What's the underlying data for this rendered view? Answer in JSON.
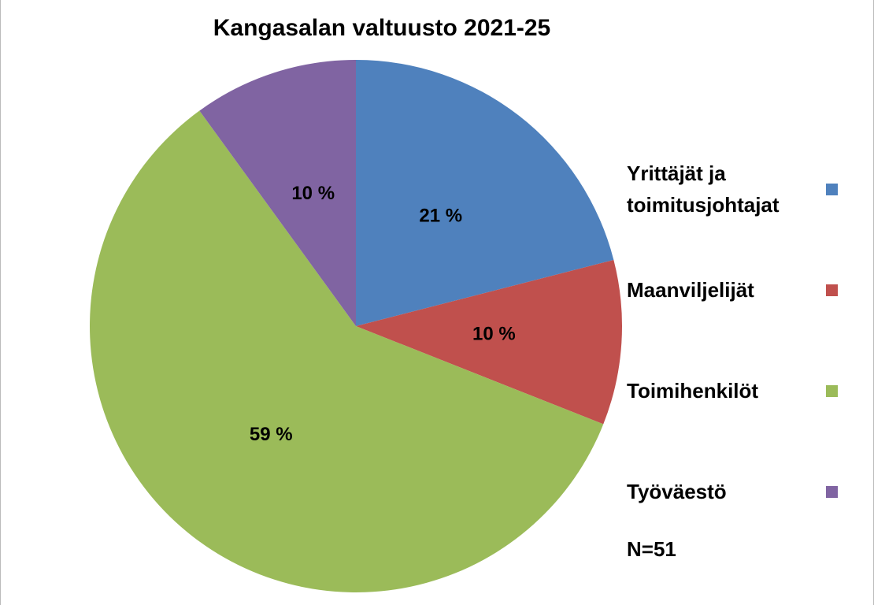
{
  "chart_data": {
    "type": "pie",
    "title": "Kangasalan valtuusto 2021-25",
    "categories": [
      "Yrittäjät ja toimitusjohtajat",
      "Maanviljelijät",
      "Toimihenkilöt",
      "Työväestö"
    ],
    "values": [
      21,
      10,
      59,
      10
    ],
    "value_labels": [
      "21 %",
      "10 %",
      "59 %",
      "10 %"
    ],
    "colors": [
      "#4f81bd",
      "#c0504d",
      "#9bbb59",
      "#8064a2"
    ],
    "annotation": "N=51"
  }
}
